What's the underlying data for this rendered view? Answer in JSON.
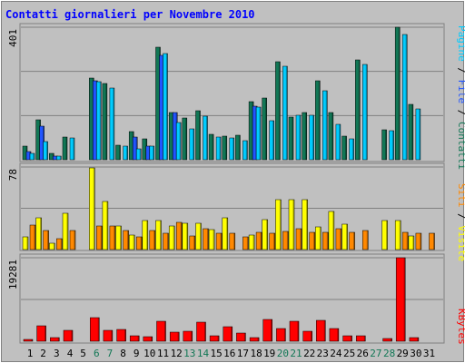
{
  "title": "Contatti giornalieri per Novembre 2010",
  "right_labels": {
    "panel1": [
      {
        "text": "Pagine",
        "color": "#00ccff"
      },
      {
        "text": " / ",
        "color": "#000000"
      },
      {
        "text": "File",
        "color": "#2255ff"
      },
      {
        "text": " / ",
        "color": "#000000"
      },
      {
        "text": "Contatti",
        "color": "#117755"
      }
    ],
    "panel2": [
      {
        "text": "Siti",
        "color": "#ff8800"
      },
      {
        "text": " / ",
        "color": "#000000"
      },
      {
        "text": "Visite",
        "color": "#ffff00"
      }
    ],
    "panel3": [
      {
        "text": "KBytes",
        "color": "#ff0000"
      }
    ]
  },
  "chart_data": {
    "type": "bar",
    "categories": [
      "1",
      "2",
      "3",
      "4",
      "5",
      "6",
      "7",
      "8",
      "9",
      "10",
      "11",
      "12",
      "13",
      "14",
      "15",
      "16",
      "17",
      "18",
      "19",
      "20",
      "21",
      "22",
      "23",
      "24",
      "25",
      "26",
      "27",
      "28",
      "29",
      "30",
      "31"
    ],
    "weekend_days": [
      "6",
      "7",
      "13",
      "14",
      "20",
      "21",
      "27",
      "28"
    ],
    "colors": {
      "Contatti": "#117755",
      "File": "#2255ff",
      "Pagine": "#00ccff",
      "Visite": "#ffff00",
      "Siti": "#ff8800",
      "KBytes": "#ff0000",
      "weekday_label": "#000000",
      "weekend_label": "#117755",
      "panel_bg": "#c0c0c0",
      "title": "#0000ff"
    },
    "panels": [
      {
        "ymax_label": "401",
        "ymax": 401,
        "series": [
          {
            "name": "Contatti",
            "values": [
              40,
              121,
              18,
              69,
              0,
              246,
              230,
              44,
              84,
              64,
              341,
              142,
              126,
              148,
              77,
              71,
              73,
              175,
              187,
              298,
              129,
              143,
              238,
              143,
              72,
              301,
              0,
              90,
              401,
              167,
              0
            ]
          },
          {
            "name": "File",
            "values": [
              26,
              101,
              12,
              0,
              0,
              240,
              0,
              0,
              69,
              40,
              315,
              142,
              0,
              0,
              0,
              0,
              0,
              162,
              0,
              0,
              0,
              0,
              0,
              0,
              0,
              0,
              0,
              0,
              0,
              0,
              0
            ]
          },
          {
            "name": "Pagine",
            "values": [
              18,
              56,
              10,
              66,
              0,
              236,
              217,
              41,
              34,
              41,
              322,
              112,
              93,
              131,
              69,
              65,
              59,
              158,
              119,
              282,
              134,
              134,
              209,
              107,
              64,
              288,
              0,
              88,
              378,
              155,
              0
            ]
          }
        ]
      },
      {
        "ymax_label": "78",
        "ymax": 78,
        "series": [
          {
            "name": "Visite",
            "values": [
              12,
              30,
              6,
              34,
              0,
              77,
              45,
              22,
              14,
              27,
              27,
              22,
              25,
              25,
              19,
              30,
              0,
              14,
              28,
              47,
              47,
              47,
              21,
              36,
              24,
              0,
              0,
              27,
              27,
              13,
              0
            ]
          },
          {
            "name": "Siti",
            "values": [
              23,
              18,
              10,
              18,
              0,
              22,
              22,
              18,
              12,
              18,
              15,
              26,
              13,
              20,
              15,
              15,
              12,
              16,
              15,
              17,
              20,
              16,
              16,
              20,
              16,
              18,
              0,
              0,
              16,
              15,
              15
            ]
          }
        ]
      },
      {
        "ymax_label": "19281",
        "ymax": 19281,
        "series": [
          {
            "name": "KBytes",
            "values": [
              500,
              3500,
              750,
              2500,
              0,
              5400,
              2600,
              2700,
              1200,
              1100,
              4600,
              2200,
              2400,
              4400,
              1200,
              3400,
              1800,
              900,
              5000,
              3000,
              4600,
              2300,
              4800,
              3000,
              1300,
              1200,
              0,
              600,
              19281,
              900,
              0
            ]
          }
        ]
      }
    ]
  }
}
